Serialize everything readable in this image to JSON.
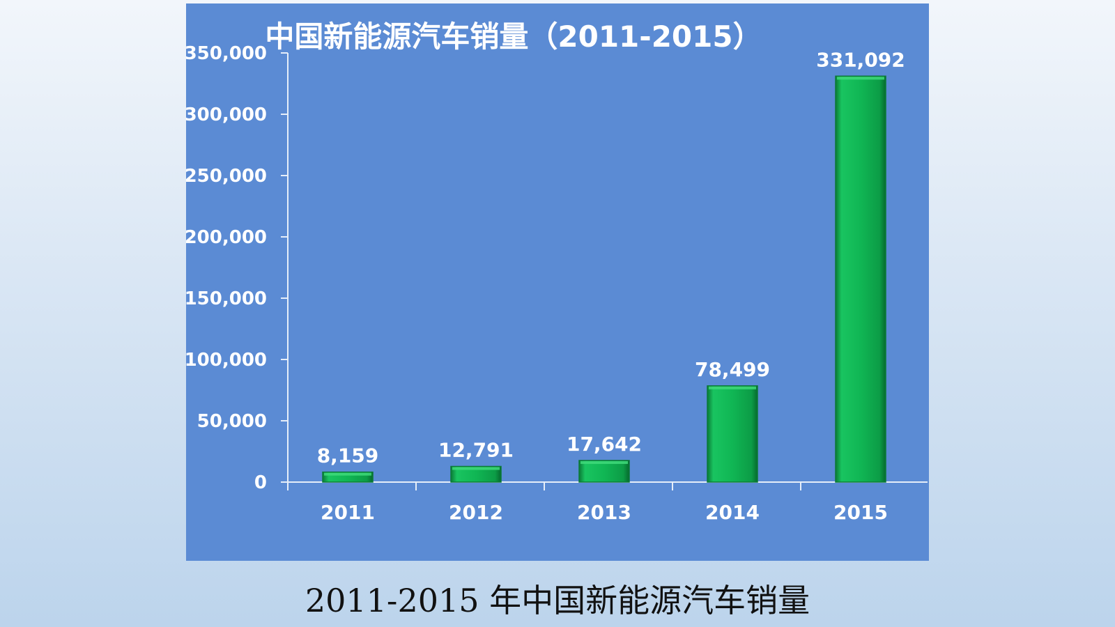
{
  "chart_data": {
    "type": "bar",
    "title": "中国新能源汽车销量（2011-2015）",
    "categories": [
      "2011",
      "2012",
      "2013",
      "2014",
      "2015"
    ],
    "values": [
      8159,
      12791,
      17642,
      78499,
      331092
    ],
    "value_labels": [
      "8,159",
      "12,791",
      "17,642",
      "78,499",
      "331,092"
    ],
    "ylim": [
      0,
      350000
    ],
    "yticks": [
      0,
      50000,
      100000,
      150000,
      200000,
      250000,
      300000,
      350000
    ],
    "ytick_labels": [
      "0",
      "50,000",
      "100,000",
      "150,000",
      "200,000",
      "250,000",
      "300,000",
      "350,000"
    ],
    "xlabel": "",
    "ylabel": "",
    "grid": false,
    "legend": "none",
    "colors": {
      "background": "#5b8bd4",
      "bar": "#0fb552",
      "bar_light": "#3fd97a",
      "bar_dark": "#0a7a36",
      "axis": "#e6eef9",
      "text": "#ffffff"
    }
  },
  "caption": "2011-2015 年中国新能源汽车销量"
}
